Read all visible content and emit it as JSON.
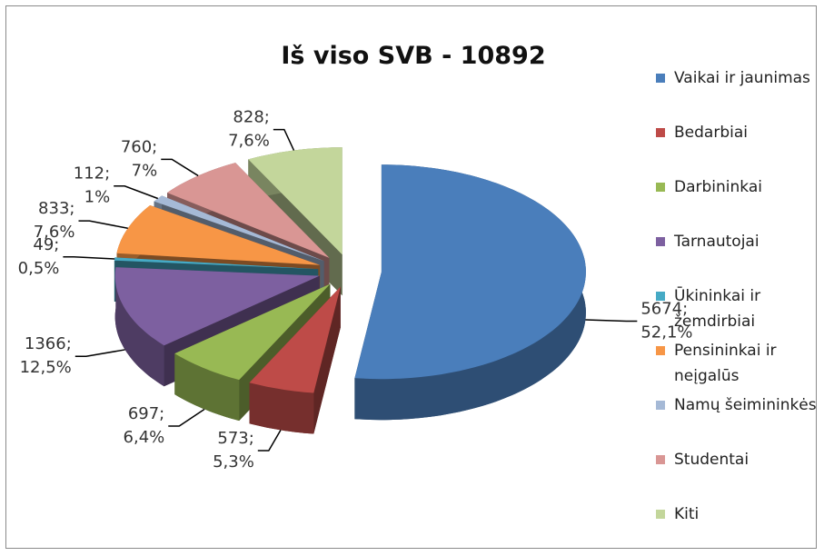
{
  "chart_data": {
    "type": "pie",
    "title": "Iš viso SVB - 10892",
    "categories": [
      "Vaikai ir jaunimas",
      "Bedarbiai",
      "Darbininkai",
      "Tarnautojai",
      "Ūkininkai ir žemdirbiai",
      "Pensininkai ir neįgalūs",
      "Namų šeimininkės",
      "Studentai",
      "Kiti"
    ],
    "values": [
      5674,
      573,
      697,
      1366,
      49,
      833,
      112,
      760,
      828
    ],
    "value_labels": [
      "5674; 52,1%",
      "573; 5,3%",
      "697; 6,4%",
      "1366; 12,5%",
      "49; 0,5%",
      "833; 7,6%",
      "112; 1%",
      "760; 7%",
      "828; 7,6%"
    ],
    "colors": [
      "#4a7ebb",
      "#be4b48",
      "#98b954",
      "#7d60a0",
      "#46aac5",
      "#f79646",
      "#a5b9d6",
      "#d99694",
      "#c3d69b"
    ],
    "legend": "right"
  }
}
